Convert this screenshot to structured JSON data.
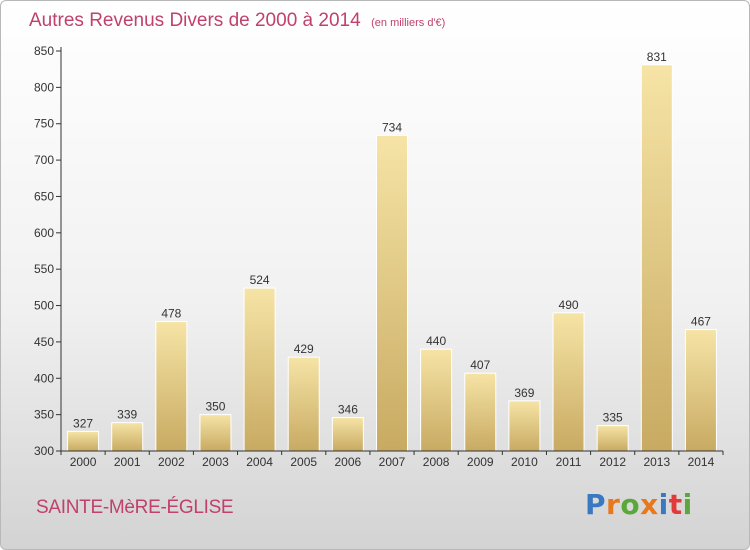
{
  "title": "Autres Revenus Divers de 2000 à 2014",
  "unit_note": "(en milliers d'€)",
  "commune": "SAINTE-MèRE-ÉGLISE",
  "logo": {
    "text": "Proxiti",
    "letter_colors": [
      "#3a78c2",
      "#e8781e",
      "#5aa83a",
      "#e8781e",
      "#3a78c2",
      "#e23a3a",
      "#5aa83a"
    ]
  },
  "colors": {
    "title": "#c0416b",
    "bar_light": "#f6e4a6",
    "bar_dark": "#c8aa62",
    "axis": "#333333"
  },
  "chart_data": {
    "type": "bar",
    "categories": [
      "2000",
      "2001",
      "2002",
      "2003",
      "2004",
      "2005",
      "2006",
      "2007",
      "2008",
      "2009",
      "2010",
      "2011",
      "2012",
      "2013",
      "2014"
    ],
    "values": [
      327,
      339,
      478,
      350,
      524,
      429,
      346,
      734,
      440,
      407,
      369,
      490,
      335,
      831,
      467
    ],
    "yticks": [
      300,
      350,
      400,
      450,
      500,
      550,
      600,
      650,
      700,
      750,
      800,
      850
    ],
    "ylim": [
      300,
      850
    ],
    "grid": false,
    "data_labels": true
  }
}
